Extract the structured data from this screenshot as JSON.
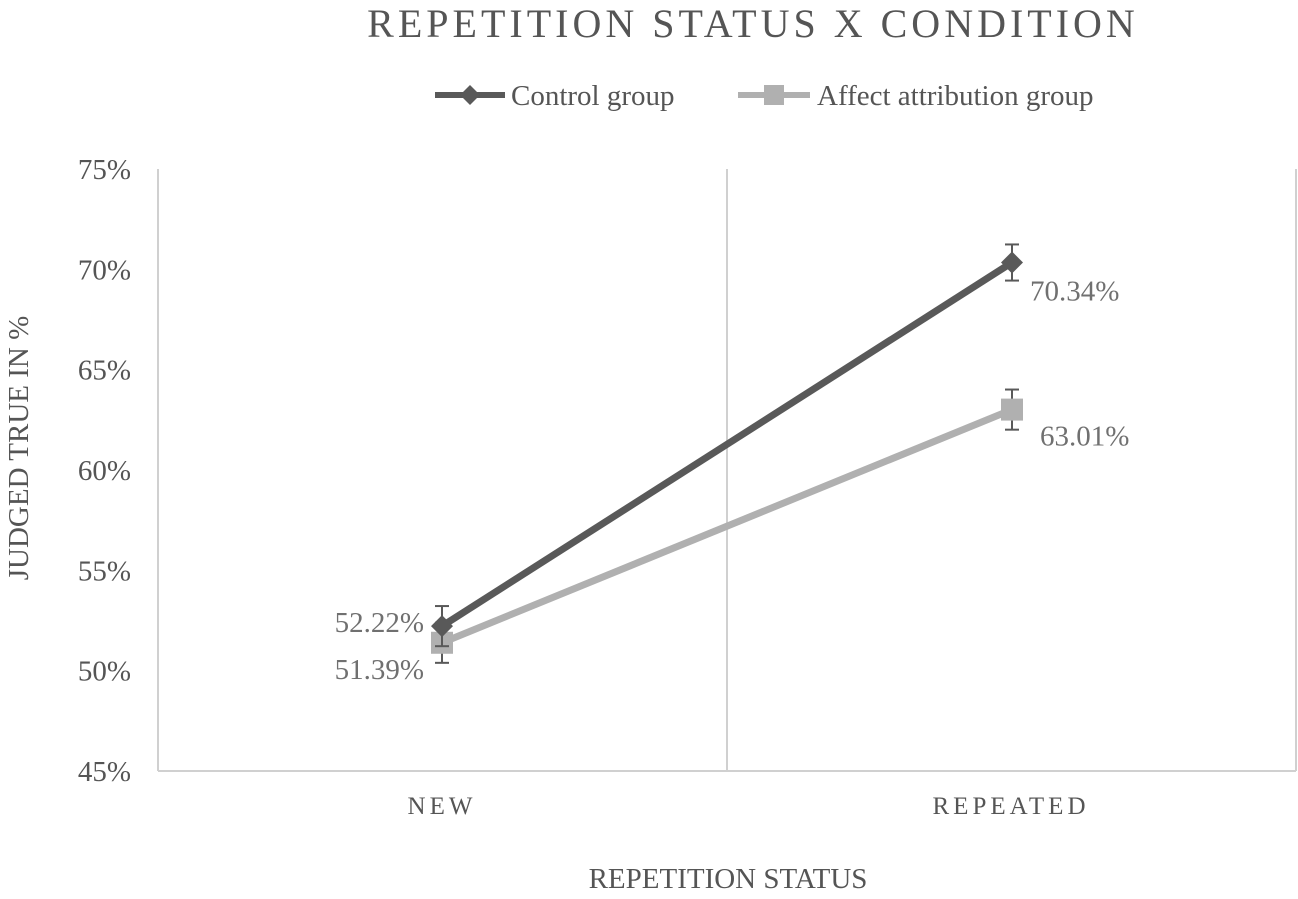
{
  "chart_data": {
    "type": "line",
    "title": "REPETITION STATUS X CONDITION",
    "xlabel": "REPETITION STATUS",
    "ylabel": "JUDGED TRUE IN %",
    "categories": [
      "NEW",
      "REPEATED"
    ],
    "ylim": [
      45,
      75
    ],
    "yticks": [
      45,
      50,
      55,
      60,
      65,
      70,
      75
    ],
    "ytick_labels": [
      "45%",
      "50%",
      "55%",
      "60%",
      "65%",
      "70%",
      "75%"
    ],
    "legend_position": "top",
    "grid": "vertical category gridlines",
    "series": [
      {
        "name": "Control group",
        "marker": "diamond",
        "color": "#595959",
        "values": [
          52.22,
          70.34
        ],
        "labels": [
          "52.22%",
          "70.34%"
        ],
        "error": [
          1.0,
          0.9
        ]
      },
      {
        "name": "Affect attribution group",
        "marker": "square",
        "color": "#b0b0b0",
        "values": [
          51.39,
          63.01
        ],
        "labels": [
          "51.39%",
          "63.01%"
        ],
        "error": [
          1.0,
          1.0
        ]
      }
    ]
  }
}
